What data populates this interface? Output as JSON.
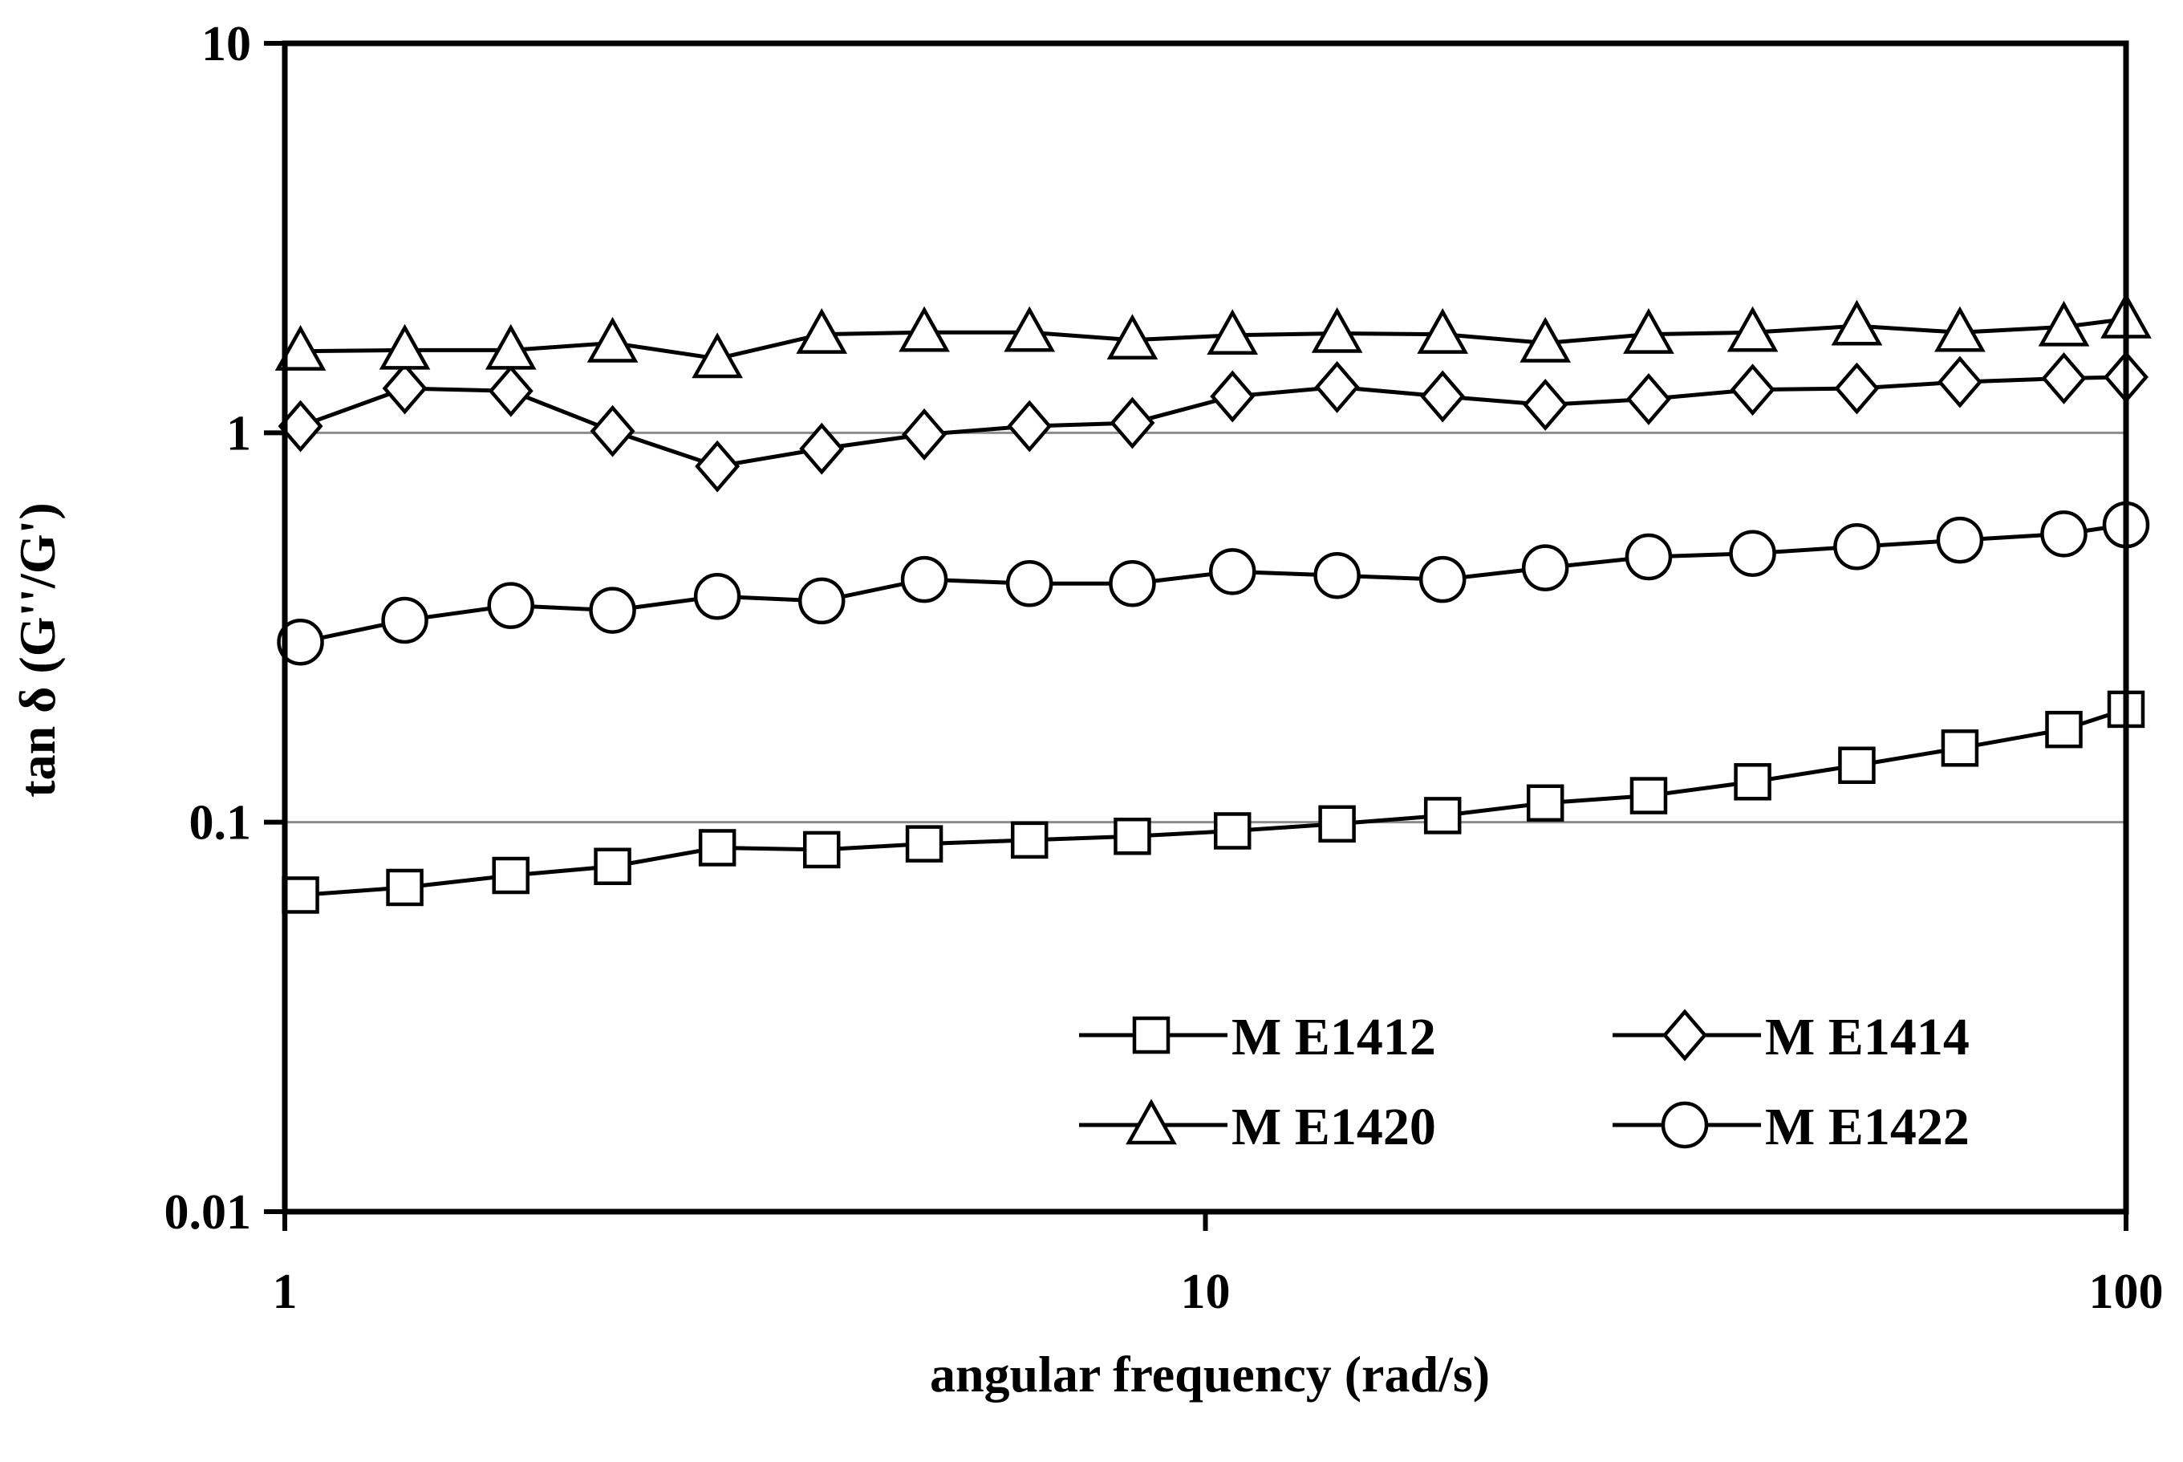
{
  "chart_data": {
    "type": "line",
    "title": "",
    "xlabel": "angular frequency (rad/s)",
    "ylabel": "tan δ (G''/G')",
    "xscale": "log",
    "yscale": "log",
    "xlim": [
      1,
      100
    ],
    "ylim": [
      0.01,
      10
    ],
    "x_ticks": [
      1,
      10,
      100
    ],
    "x_tick_labels": [
      "1",
      "10",
      "100"
    ],
    "y_ticks": [
      0.01,
      0.1,
      1,
      10
    ],
    "y_tick_labels": [
      "0.01",
      "0.1",
      "1",
      "10"
    ],
    "grid": "horizontal lines at 0.1 and 1",
    "legend_position": "bottom-right",
    "x": [
      1.04,
      1.35,
      1.76,
      2.27,
      2.95,
      3.83,
      4.95,
      6.44,
      8.33,
      10.7,
      13.9,
      18.1,
      23.4,
      30.3,
      39.3,
      51.0,
      66.0,
      85.6,
      100
    ],
    "series": [
      {
        "name": "M E1412",
        "marker": "square",
        "values": [
          0.065,
          0.068,
          0.073,
          0.077,
          0.086,
          0.085,
          0.088,
          0.09,
          0.092,
          0.095,
          0.099,
          0.104,
          0.112,
          0.117,
          0.127,
          0.14,
          0.155,
          0.173,
          0.195
        ]
      },
      {
        "name": "M E1414",
        "marker": "diamond",
        "values": [
          1.04,
          1.3,
          1.28,
          1.01,
          0.82,
          0.91,
          0.99,
          1.04,
          1.06,
          1.24,
          1.31,
          1.24,
          1.18,
          1.22,
          1.29,
          1.3,
          1.35,
          1.38,
          1.39
        ]
      },
      {
        "name": "M E1420",
        "marker": "triangle",
        "values": [
          1.62,
          1.63,
          1.63,
          1.7,
          1.55,
          1.79,
          1.81,
          1.81,
          1.73,
          1.78,
          1.8,
          1.79,
          1.7,
          1.79,
          1.81,
          1.88,
          1.81,
          1.87,
          1.96
        ]
      },
      {
        "name": "M E1422",
        "marker": "circle",
        "values": [
          0.29,
          0.33,
          0.36,
          0.35,
          0.38,
          0.37,
          0.42,
          0.41,
          0.41,
          0.44,
          0.43,
          0.42,
          0.45,
          0.48,
          0.49,
          0.51,
          0.53,
          0.55,
          0.58
        ]
      }
    ],
    "colors": {
      "line": "#000000",
      "marker_fill": "#ffffff",
      "gridline": "#8c8c8c",
      "background": "#ffffff"
    }
  }
}
